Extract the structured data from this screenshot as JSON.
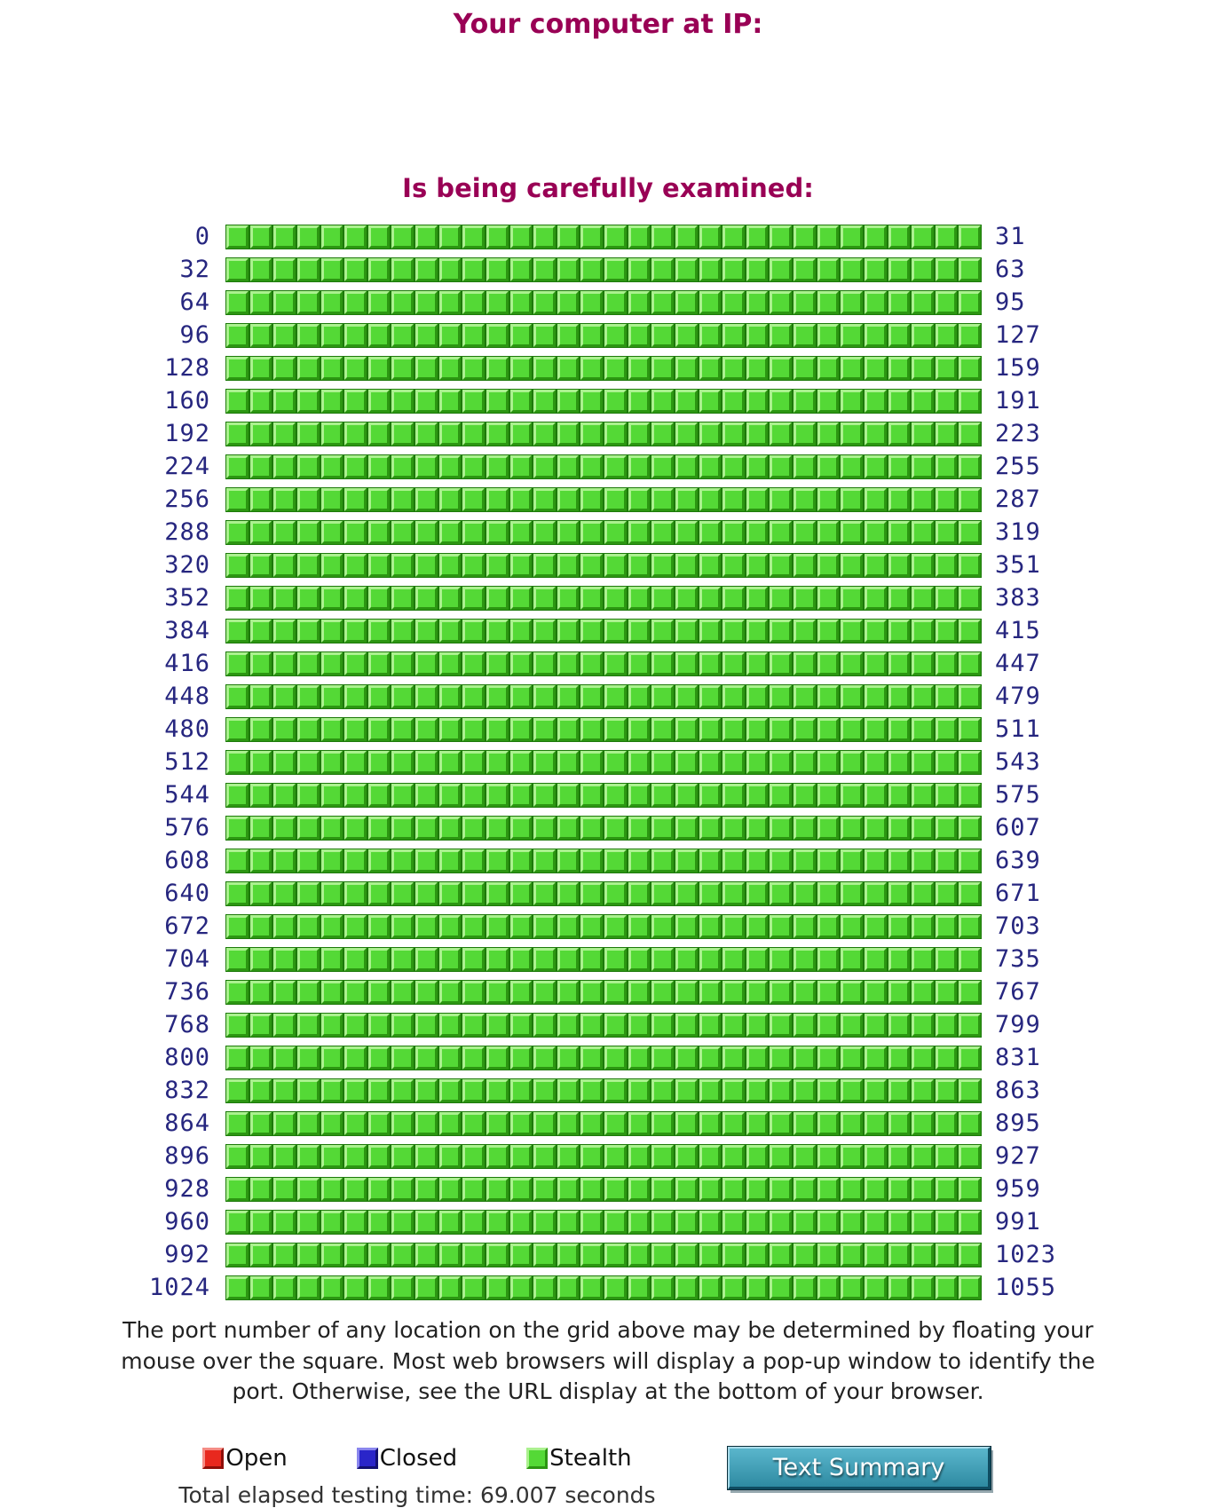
{
  "header": {
    "title": "Your computer at IP:",
    "subtitle": "Is being carefully examined:"
  },
  "grid": {
    "cols": 32,
    "cell_status": "stealth",
    "row_starts": [
      0,
      32,
      64,
      96,
      128,
      160,
      192,
      224,
      256,
      288,
      320,
      352,
      384,
      416,
      448,
      480,
      512,
      544,
      576,
      608,
      640,
      672,
      704,
      736,
      768,
      800,
      832,
      864,
      896,
      928,
      960,
      992,
      1024
    ],
    "row_ends": [
      31,
      63,
      95,
      127,
      159,
      191,
      223,
      255,
      287,
      319,
      351,
      383,
      415,
      447,
      479,
      511,
      543,
      575,
      607,
      639,
      671,
      703,
      735,
      767,
      799,
      831,
      863,
      895,
      927,
      959,
      991,
      1023,
      1055
    ]
  },
  "description": "The port number of any location on the grid above may be determined by floating your mouse over the square. Most web browsers will display a pop-up window to identify the port. Otherwise, see the URL display at the bottom of your browser.",
  "legend": {
    "open": "Open",
    "closed": "Closed",
    "stealth": "Stealth"
  },
  "elapsed": "Total elapsed testing time: 69.007 seconds",
  "button_label": "Text Summary",
  "colors": {
    "accent": "#990055",
    "row_label": "#26267f",
    "stealth": "#54d936",
    "open": "#e8281e",
    "closed": "#2a25c9"
  }
}
